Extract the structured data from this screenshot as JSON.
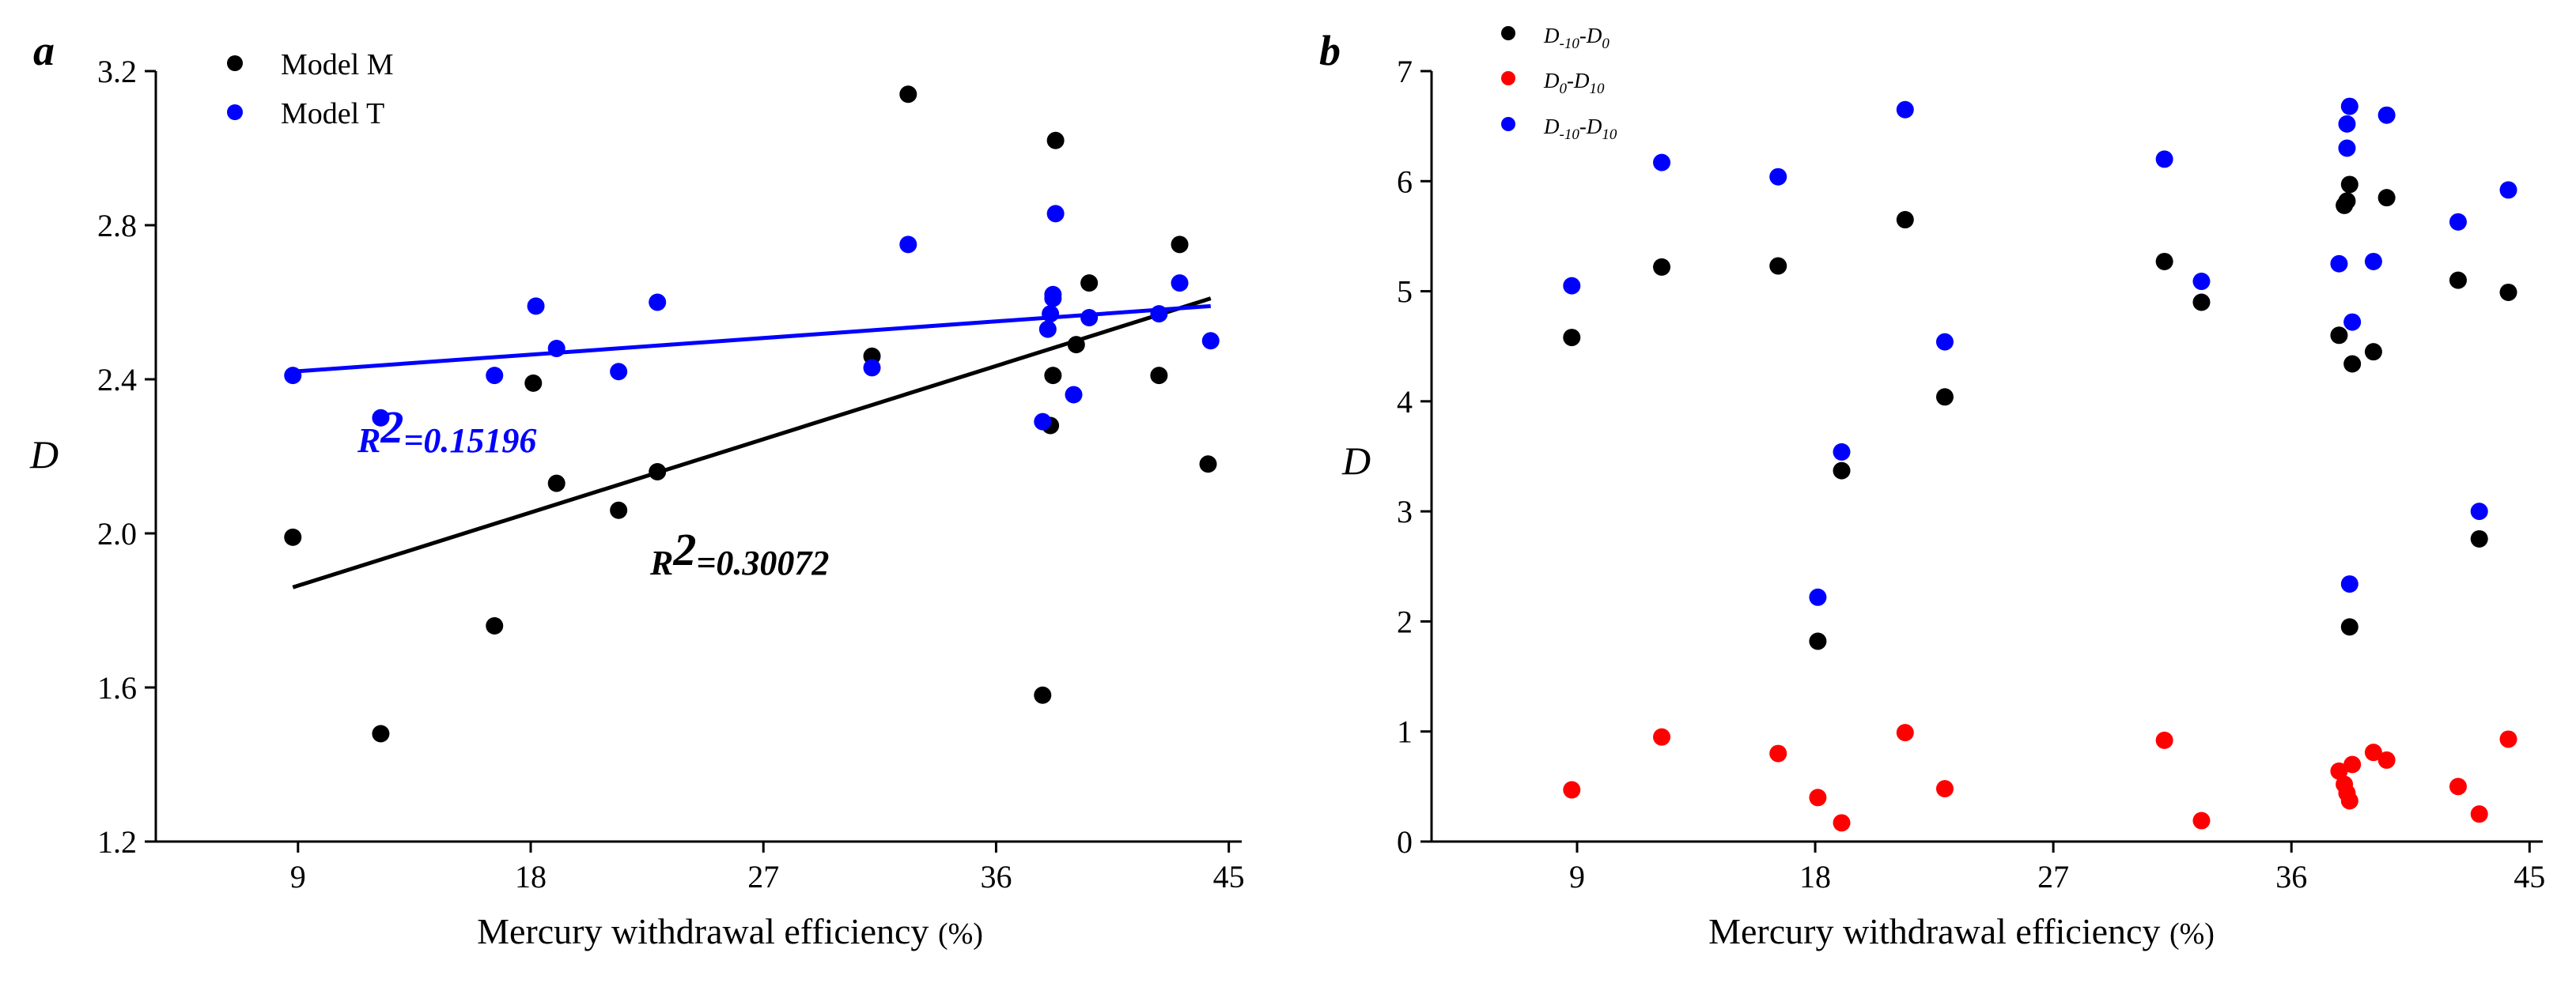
{
  "colors": {
    "black": "#000000",
    "red": "#ff0000",
    "blue": "#0000ff"
  },
  "chart_data": [
    {
      "type": "scatter",
      "panel_label": "a",
      "xlabel": "Mercury withdrawal efficiency",
      "xlabel_unit": "(%)",
      "ylabel": "D",
      "xlim": [
        3.5,
        45.5
      ],
      "ylim": [
        1.2,
        3.2
      ],
      "xticks": [
        9,
        18,
        27,
        36,
        45
      ],
      "xtick_labels": [
        "9",
        "18",
        "27",
        "36",
        "45"
      ],
      "yticks": [
        1.2,
        1.6,
        2.0,
        2.4,
        2.8,
        3.2
      ],
      "ytick_labels": [
        "1.2",
        "1.6",
        "2.0",
        "2.4",
        "2.8",
        "3.2"
      ],
      "series": [
        {
          "name": "Model M",
          "color": "#000000",
          "points": [
            [
              8.8,
              1.99
            ],
            [
              12.2,
              1.48
            ],
            [
              16.6,
              1.76
            ],
            [
              18.1,
              2.39
            ],
            [
              19,
              2.13
            ],
            [
              21.4,
              2.06
            ],
            [
              22.9,
              2.16
            ],
            [
              31.2,
              2.46
            ],
            [
              32.6,
              3.14
            ],
            [
              37.8,
              1.58
            ],
            [
              38.1,
              2.28
            ],
            [
              38.2,
              2.41
            ],
            [
              38.3,
              3.02
            ],
            [
              39.1,
              2.49
            ],
            [
              39.6,
              2.65
            ],
            [
              42.3,
              2.41
            ],
            [
              43.1,
              2.75
            ],
            [
              44.2,
              2.18
            ]
          ],
          "fit": {
            "x": [
              8.8,
              44.3
            ],
            "y": [
              1.86,
              2.61
            ],
            "r2_label": "=0.30072"
          }
        },
        {
          "name": "Model T",
          "color": "#0000ff",
          "points": [
            [
              8.8,
              2.41
            ],
            [
              12.2,
              2.3
            ],
            [
              16.6,
              2.41
            ],
            [
              18.2,
              2.59
            ],
            [
              19,
              2.48
            ],
            [
              21.4,
              2.42
            ],
            [
              22.9,
              2.6
            ],
            [
              31.2,
              2.43
            ],
            [
              32.6,
              2.75
            ],
            [
              37.8,
              2.29
            ],
            [
              38,
              2.53
            ],
            [
              38.1,
              2.57
            ],
            [
              38.2,
              2.61
            ],
            [
              38.2,
              2.62
            ],
            [
              38.3,
              2.83
            ],
            [
              39,
              2.36
            ],
            [
              39.6,
              2.56
            ],
            [
              42.3,
              2.57
            ],
            [
              43.1,
              2.65
            ],
            [
              44.3,
              2.5
            ]
          ],
          "fit": {
            "x": [
              8.8,
              44.3
            ],
            "y": [
              2.42,
              2.59
            ],
            "r2_label": "=0.15196"
          }
        }
      ]
    },
    {
      "type": "scatter",
      "panel_label": "b",
      "xlabel": "Mercury withdrawal efficiency",
      "xlabel_unit": "(%)",
      "ylabel": "D",
      "xlim": [
        3.5,
        45.5
      ],
      "ylim": [
        0,
        7
      ],
      "xticks": [
        9,
        18,
        27,
        36,
        45
      ],
      "xtick_labels": [
        "9",
        "18",
        "27",
        "36",
        "45"
      ],
      "yticks": [
        0,
        1,
        2,
        3,
        4,
        5,
        6,
        7
      ],
      "ytick_labels": [
        "0",
        "1",
        "2",
        "3",
        "4",
        "5",
        "6",
        "7"
      ],
      "series": [
        {
          "name": "D-10-D0",
          "label_parts": [
            "D",
            "-10",
            "-D",
            "0"
          ],
          "color": "#000000",
          "points": [
            [
              8.8,
              4.58
            ],
            [
              12.2,
              5.22
            ],
            [
              16.6,
              5.23
            ],
            [
              18.1,
              1.82
            ],
            [
              19,
              3.37
            ],
            [
              21.4,
              5.65
            ],
            [
              22.9,
              4.04
            ],
            [
              31.2,
              5.27
            ],
            [
              32.6,
              4.9
            ],
            [
              37.8,
              4.6
            ],
            [
              38,
              5.78
            ],
            [
              38.1,
              5.82
            ],
            [
              38.2,
              5.97
            ],
            [
              38.2,
              1.95
            ],
            [
              38.3,
              4.34
            ],
            [
              39.1,
              4.45
            ],
            [
              39.6,
              5.85
            ],
            [
              42.3,
              5.1
            ],
            [
              43.1,
              2.75
            ],
            [
              44.2,
              4.99
            ]
          ]
        },
        {
          "name": "D0-D10",
          "label_parts": [
            "D",
            "0",
            "-D",
            "10"
          ],
          "color": "#ff0000",
          "points": [
            [
              8.8,
              0.47
            ],
            [
              12.2,
              0.95
            ],
            [
              16.6,
              0.8
            ],
            [
              18.1,
              0.4
            ],
            [
              19,
              0.17
            ],
            [
              21.4,
              0.99
            ],
            [
              22.9,
              0.48
            ],
            [
              31.2,
              0.92
            ],
            [
              32.6,
              0.19
            ],
            [
              37.8,
              0.64
            ],
            [
              38,
              0.52
            ],
            [
              38.1,
              0.44
            ],
            [
              38.2,
              0.37
            ],
            [
              38.3,
              0.7
            ],
            [
              39.1,
              0.81
            ],
            [
              39.6,
              0.74
            ],
            [
              42.3,
              0.5
            ],
            [
              43.1,
              0.25
            ],
            [
              44.2,
              0.93
            ]
          ]
        },
        {
          "name": "D-10-D10",
          "label_parts": [
            "D",
            "-10",
            "-D",
            "10"
          ],
          "color": "#0000ff",
          "points": [
            [
              8.8,
              5.05
            ],
            [
              12.2,
              6.17
            ],
            [
              16.6,
              6.04
            ],
            [
              18.1,
              2.22
            ],
            [
              19,
              3.54
            ],
            [
              21.4,
              6.65
            ],
            [
              22.9,
              4.54
            ],
            [
              31.2,
              6.2
            ],
            [
              32.6,
              5.09
            ],
            [
              37.8,
              5.25
            ],
            [
              38.1,
              6.3
            ],
            [
              38.1,
              6.52
            ],
            [
              38.2,
              6.68
            ],
            [
              38.2,
              2.34
            ],
            [
              38.3,
              4.72
            ],
            [
              39.1,
              5.27
            ],
            [
              39.6,
              6.6
            ],
            [
              42.3,
              5.63
            ],
            [
              43.1,
              3.0
            ],
            [
              44.2,
              5.92
            ]
          ]
        }
      ]
    }
  ]
}
